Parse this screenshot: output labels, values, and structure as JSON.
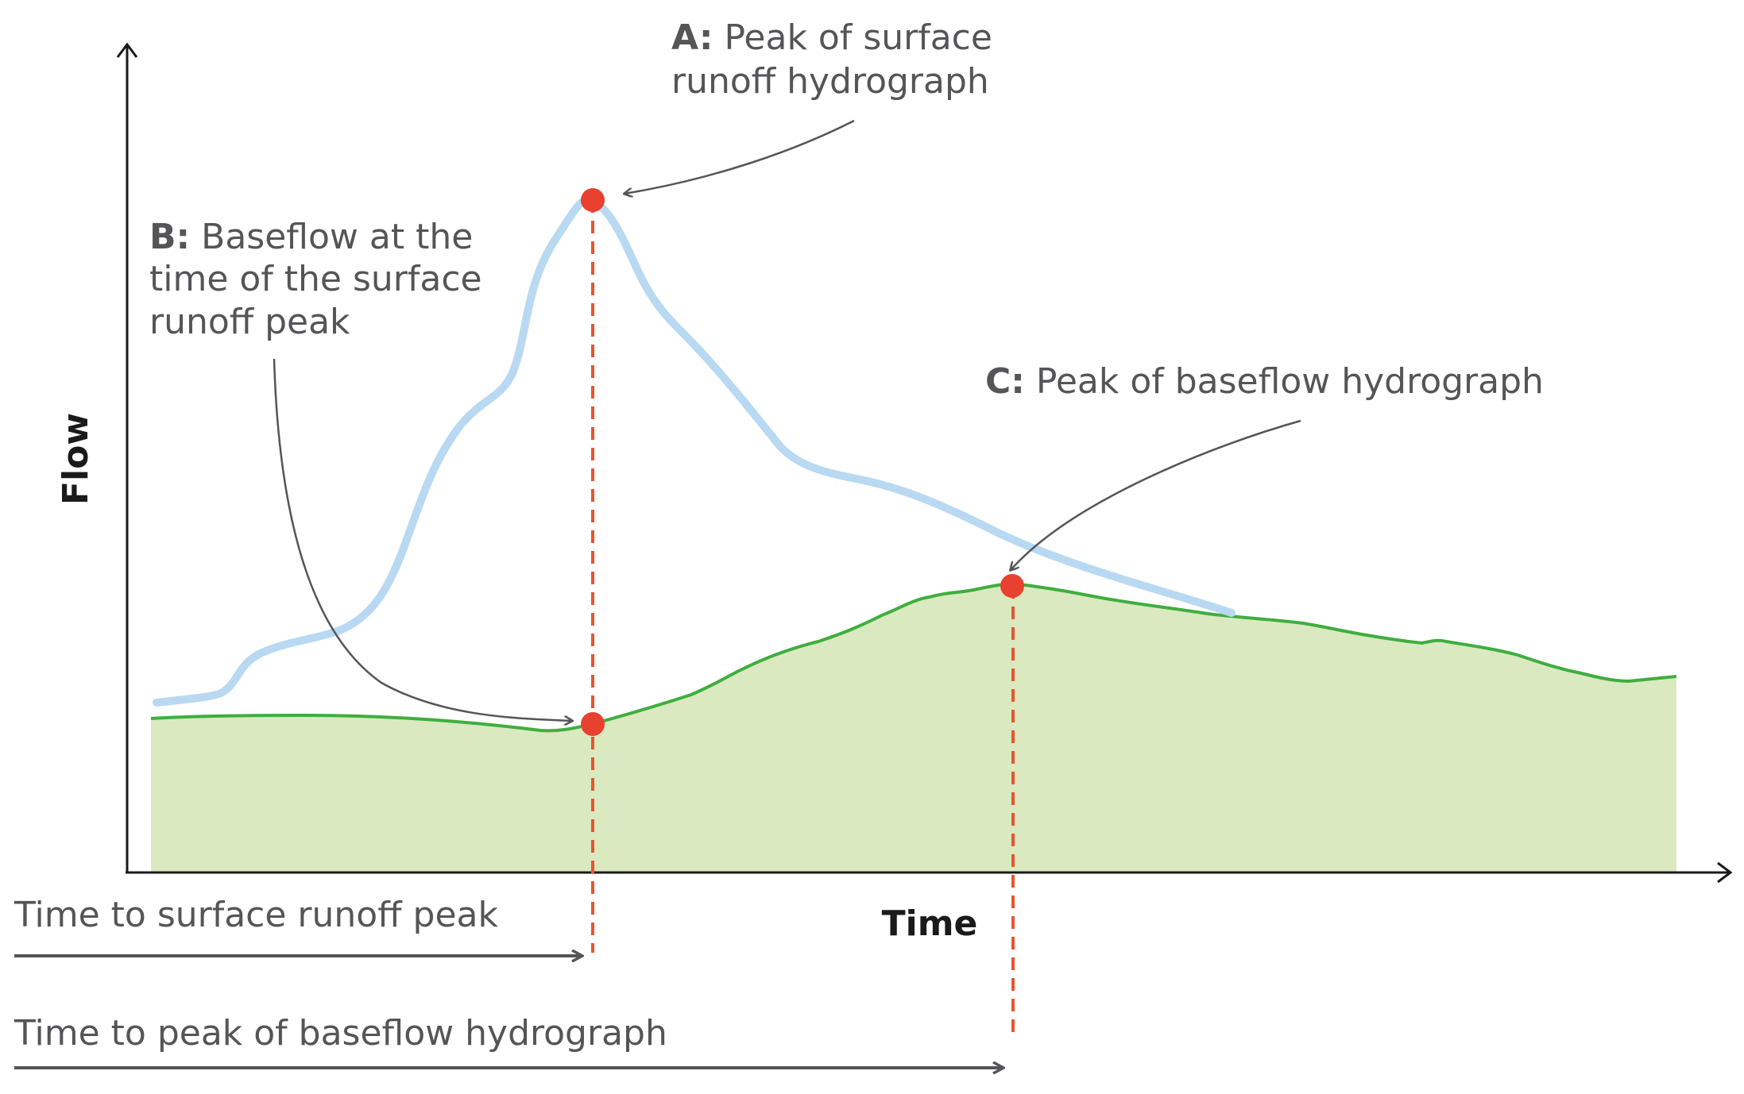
{
  "axes": {
    "y_label": "Flow",
    "x_label": "Time"
  },
  "annotations": {
    "a_key": "A:",
    "a_line1": " Peak of surface",
    "a_line2": "runoff hydrograph",
    "b_key": "B:",
    "b_line1": " Baseflow at the",
    "b_line2": "time of the surface",
    "b_line3": "runoff peak",
    "c_key": "C:",
    "c_line1": " Peak of baseflow hydrograph"
  },
  "timelines": {
    "surface_peak": "Time to surface runoff peak",
    "baseflow_peak": "Time to peak of baseflow hydrograph"
  },
  "colors": {
    "surface_runoff": "#b8d9f1",
    "baseflow_line": "#3fae3f",
    "baseflow_fill": "#dbe9c0",
    "markers": "#e8412f",
    "guides": "#e8552f",
    "text": "#555558",
    "axes": "#1a1a1a"
  }
}
